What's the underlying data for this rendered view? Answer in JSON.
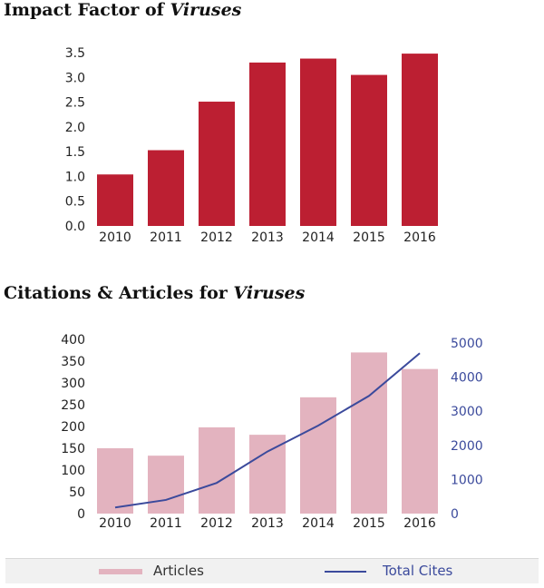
{
  "chart_data": [
    {
      "type": "bar",
      "title": "Impact Factor of",
      "title_italic": "Viruses",
      "categories": [
        "2010",
        "2011",
        "2012",
        "2013",
        "2014",
        "2015",
        "2016"
      ],
      "values": [
        1.04,
        1.53,
        2.51,
        3.3,
        3.38,
        3.05,
        3.48
      ],
      "ylim": [
        0,
        3.5
      ],
      "yticks": [
        "0.0",
        "0.5",
        "1.0",
        "1.5",
        "2.0",
        "2.5",
        "3.0",
        "3.5"
      ],
      "bar_color": "#bc1f32"
    },
    {
      "type": "bar+line",
      "title": "Citations & Articles for",
      "title_italic": "Viruses",
      "categories": [
        "2010",
        "2011",
        "2012",
        "2013",
        "2014",
        "2015",
        "2016"
      ],
      "series": [
        {
          "name": "Articles",
          "type": "bar",
          "axis": "left",
          "values": [
            150,
            133,
            198,
            181,
            267,
            370,
            332
          ],
          "color": "#e3b3bf"
        },
        {
          "name": "Total Cites",
          "type": "line",
          "axis": "right",
          "values": [
            180,
            400,
            900,
            1820,
            2580,
            3450,
            4700
          ],
          "color": "#3b4a9c"
        }
      ],
      "ylim_left": [
        0,
        400
      ],
      "yticks_left": [
        "0",
        "50",
        "100",
        "150",
        "200",
        "250",
        "300",
        "350",
        "400"
      ],
      "ylim_right": [
        0,
        5000
      ],
      "yticks_right": [
        "0",
        "1000",
        "2000",
        "3000",
        "4000",
        "5000"
      ]
    }
  ],
  "legend": {
    "articles_label": "Articles",
    "cites_label": "Total Cites"
  }
}
